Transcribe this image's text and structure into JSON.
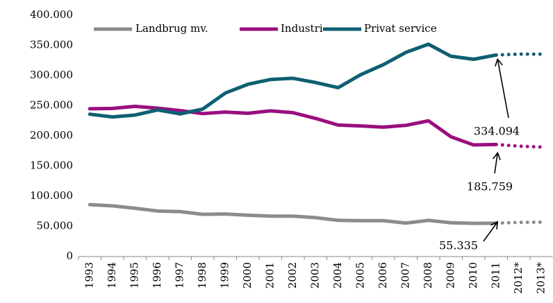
{
  "chart_data": {
    "type": "line",
    "categories": [
      "1993",
      "1994",
      "1995",
      "1996",
      "1997",
      "1998",
      "1999",
      "2000",
      "2001",
      "2002",
      "2003",
      "2004",
      "2005",
      "2006",
      "2007",
      "2008",
      "2009",
      "2010",
      "2011",
      "2012*",
      "2013*"
    ],
    "series": [
      {
        "name": "Landbrug mv.",
        "color": "#8c8c8c",
        "values": [
          86000,
          84000,
          80000,
          75500,
          74500,
          70000,
          70500,
          68500,
          67000,
          67000,
          64500,
          60000,
          59500,
          59500,
          55500,
          60000,
          56000,
          55000,
          55335,
          56500,
          57000
        ],
        "value_labels": [
          null,
          null,
          null,
          null,
          null,
          null,
          null,
          null,
          null,
          null,
          null,
          null,
          null,
          null,
          null,
          null,
          null,
          null,
          "55.335",
          null,
          null
        ]
      },
      {
        "name": "Industri",
        "color": "#990f7f",
        "values": [
          245000,
          245500,
          249000,
          246000,
          242000,
          237000,
          239500,
          237500,
          241500,
          238500,
          229000,
          218000,
          216500,
          214500,
          217500,
          225000,
          198500,
          185000,
          185759,
          183000,
          181500
        ],
        "value_labels": [
          null,
          null,
          null,
          null,
          null,
          null,
          null,
          null,
          null,
          null,
          null,
          null,
          null,
          null,
          null,
          null,
          null,
          null,
          "185.759",
          null,
          null
        ]
      },
      {
        "name": "Privat service",
        "color": "#0f5f73",
        "values": [
          236000,
          231500,
          234500,
          243000,
          236500,
          244500,
          271000,
          285500,
          293500,
          295500,
          288500,
          280000,
          301500,
          318000,
          338500,
          352000,
          332000,
          327000,
          334094,
          335500,
          335500
        ],
        "value_labels": [
          null,
          null,
          null,
          null,
          null,
          null,
          null,
          null,
          null,
          null,
          null,
          null,
          null,
          null,
          null,
          null,
          null,
          null,
          "334.094",
          null,
          null
        ]
      }
    ],
    "ylim": [
      0,
      400000
    ],
    "yticks": [
      {
        "value": 0,
        "label": "0"
      },
      {
        "value": 50000,
        "label": "50.000"
      },
      {
        "value": 100000,
        "label": "100.000"
      },
      {
        "value": 150000,
        "label": "150.000"
      },
      {
        "value": 200000,
        "label": "200.000"
      },
      {
        "value": 250000,
        "label": "250.000"
      },
      {
        "value": 300000,
        "label": "300.000"
      },
      {
        "value": 350000,
        "label": "350.000"
      },
      {
        "value": 400000,
        "label": "400.000"
      }
    ],
    "grid": false
  }
}
